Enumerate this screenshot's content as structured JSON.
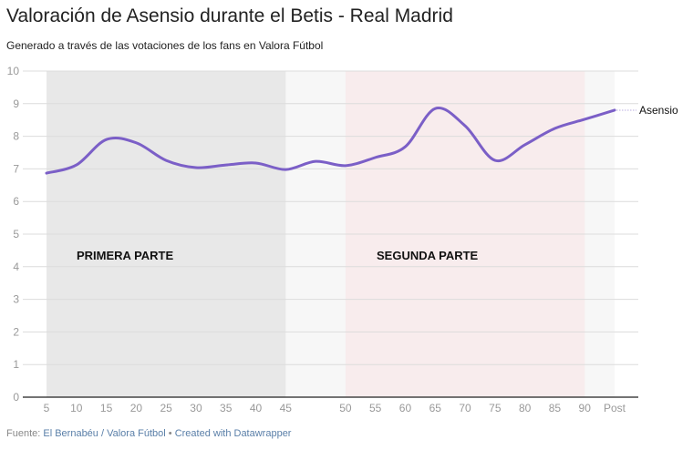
{
  "header": {
    "title": "Valoración de Asensio durante el Betis - Real Madrid",
    "subtitle": "Generado a través de las votaciones de los fans en Valora Fútbol"
  },
  "chart_data": {
    "type": "line",
    "title": "Valoración de Asensio durante el Betis - Real Madrid",
    "subtitle": "Generado a través de las votaciones de los fans en Valora Fútbol",
    "xlabel": "",
    "ylabel": "",
    "categories": [
      "5",
      "10",
      "15",
      "20",
      "25",
      "30",
      "35",
      "40",
      "45",
      "",
      "50",
      "55",
      "60",
      "65",
      "70",
      "75",
      "80",
      "85",
      "90",
      "Post"
    ],
    "series": [
      {
        "name": "Asensio",
        "color": "#7b5fc7",
        "values": [
          6.87,
          7.12,
          7.9,
          7.8,
          7.26,
          7.04,
          7.12,
          7.18,
          6.98,
          7.23,
          7.1,
          7.35,
          7.68,
          8.85,
          8.32,
          7.26,
          7.74,
          8.24,
          8.52,
          8.8
        ]
      }
    ],
    "ylim": [
      0,
      10
    ],
    "yticks": [
      0,
      1,
      2,
      3,
      4,
      5,
      6,
      7,
      8,
      9,
      10
    ],
    "grid": true,
    "legend": "line-end label",
    "annotations": [
      {
        "text": "PRIMERA PARTE",
        "range": [
          "5",
          "45"
        ],
        "color": "#e8e8e8"
      },
      {
        "text": "SEGUNDA PARTE",
        "range": [
          "50",
          "90"
        ],
        "color": "#f8eced"
      }
    ]
  },
  "footer": {
    "source_label": "Fuente:",
    "source": "El Bernabéu / Valora Fútbol",
    "separator": "•",
    "credit": "Created with Datawrapper"
  }
}
